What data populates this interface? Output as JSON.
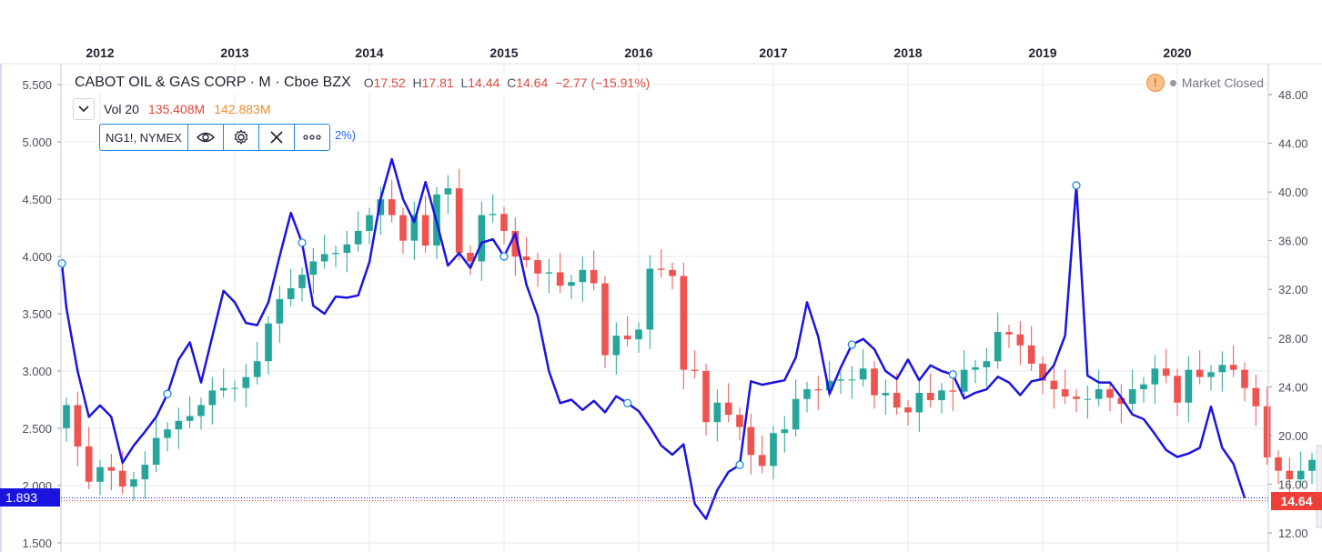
{
  "header": {
    "symbol_title": "CABOT OIL & GAS CORP · M · Cboe BZX",
    "ohlc": {
      "open_label": "O",
      "open": "17.52",
      "high_label": "H",
      "high": "17.81",
      "low_label": "L",
      "low": "14.44",
      "close_label": "C",
      "close": "14.64",
      "change": "−2.77 (−15.91%)"
    },
    "market_status": "Market Closed",
    "alert_glyph": "!"
  },
  "volume": {
    "label": "Vol 20",
    "value1": "135.408M",
    "value2": "142.883M"
  },
  "overlay_study": {
    "name": "NG1!, NYMEX",
    "tail_text": "2%)"
  },
  "price_badges": {
    "left": "1.893",
    "right": "14.64"
  },
  "colors": {
    "up": "#26a69a",
    "down": "#ef5350",
    "overlay_line": "#1b14e0",
    "grid": "#e6e8ee",
    "axis_text": "#4a4f5c",
    "left_badge": "#1b14e0",
    "right_badge": "#ef3e36"
  },
  "chart_data": {
    "type": "line",
    "x_axis": {
      "type": "time",
      "tick_labels": [
        "2012",
        "2013",
        "2014",
        "2015",
        "2016",
        "2017",
        "2018",
        "2019",
        "2020"
      ],
      "range": [
        "2011-09",
        "2020-06"
      ]
    },
    "left_axis": {
      "series": "NG1!, NYMEX",
      "tick_labels": [
        "5.500",
        "5.000",
        "4.500",
        "4.000",
        "3.500",
        "3.000",
        "2.500",
        "2.000",
        "1.500"
      ],
      "range": [
        1.45,
        5.6
      ]
    },
    "right_axis": {
      "series": "CABOT OIL & GAS CORP",
      "tick_labels": [
        "48.00",
        "44.00",
        "40.00",
        "36.00",
        "32.00",
        "28.00",
        "24.00",
        "20.00",
        "16.00",
        "12.00"
      ],
      "range": [
        11.5,
        48.5
      ]
    },
    "grid": true,
    "cog_monthly_candles": {
      "description": "Approximate monthly O/C candles for COG (right axis)",
      "start": "2011-10",
      "open": [
        20.6,
        22.5,
        19.1,
        16.2,
        17.4,
        17.1,
        15.8,
        16.4,
        17.6,
        19.8,
        20.5,
        21.2,
        21.6,
        22.5,
        23.7,
        23.9,
        23.9,
        24.8,
        26.1,
        29.2,
        31.2,
        32.1,
        33.2,
        34.3,
        34.9,
        35.0,
        35.7,
        36.8,
        38.1,
        39.4,
        38.1,
        36.0,
        38.1,
        35.6,
        39.8,
        40.3,
        35.0,
        34.3,
        38.1,
        38.2,
        36.8,
        34.7,
        34.4,
        33.3,
        33.4,
        32.3,
        32.6,
        33.6,
        32.5,
        26.6,
        28.2,
        27.9,
        28.7,
        33.7,
        33.6,
        33.1,
        25.4,
        25.3,
        21.1,
        22.7,
        21.7,
        20.7,
        18.4,
        17.5,
        20.2,
        20.5,
        23.0,
        23.8,
        23.7,
        24.5,
        24.6,
        24.6,
        25.5,
        23.3,
        23.5,
        22.3,
        21.9,
        23.5,
        22.9,
        23.7,
        23.6,
        25.4,
        25.6,
        26.1,
        28.5,
        28.3,
        27.4,
        25.9,
        24.5,
        23.8,
        23.2,
        23.0,
        23.0,
        23.8,
        23.1,
        22.6,
        23.8,
        24.2,
        25.5,
        24.9,
        22.7,
        25.4,
        24.8,
        25.2,
        25.8,
        25.4,
        23.9,
        22.4,
        18.2,
        17.1,
        16.4,
        17.1,
        18.0,
        16.9,
        17.5
      ],
      "close": [
        22.5,
        19.1,
        16.2,
        17.4,
        17.1,
        15.8,
        16.4,
        17.6,
        19.8,
        20.5,
        21.2,
        21.6,
        22.5,
        23.7,
        23.9,
        23.9,
        24.8,
        26.1,
        29.2,
        31.2,
        32.1,
        33.2,
        34.3,
        34.9,
        35.0,
        35.7,
        36.8,
        38.1,
        39.4,
        38.1,
        36.0,
        38.1,
        35.6,
        39.8,
        40.3,
        35.0,
        34.3,
        38.1,
        38.2,
        36.8,
        34.7,
        34.4,
        33.3,
        33.4,
        32.3,
        32.6,
        33.6,
        32.5,
        26.6,
        28.2,
        27.9,
        28.7,
        33.7,
        33.6,
        33.1,
        25.4,
        25.3,
        21.1,
        22.7,
        21.7,
        20.7,
        18.4,
        17.5,
        20.2,
        20.5,
        23.0,
        23.8,
        23.7,
        24.5,
        24.6,
        24.6,
        25.5,
        23.3,
        23.5,
        22.3,
        21.9,
        23.5,
        22.9,
        23.7,
        23.6,
        25.4,
        25.6,
        26.1,
        28.5,
        28.3,
        27.4,
        25.9,
        24.5,
        23.8,
        23.2,
        23.0,
        23.0,
        23.8,
        23.1,
        22.6,
        23.8,
        24.2,
        25.5,
        24.9,
        22.7,
        25.4,
        24.8,
        25.2,
        25.8,
        25.4,
        23.9,
        22.4,
        18.2,
        17.1,
        16.4,
        17.1,
        18.0,
        16.9,
        17.5,
        14.64
      ]
    },
    "ng_monthly_close": {
      "description": "Approximate monthly close of NG1! (left axis)",
      "start": "2011-09",
      "values": [
        3.94,
        3.55,
        3.0,
        2.6,
        2.7,
        2.6,
        2.2,
        2.35,
        2.47,
        2.6,
        2.8,
        3.1,
        3.25,
        2.9,
        3.3,
        3.7,
        3.6,
        3.42,
        3.4,
        3.6,
        4.0,
        4.38,
        4.12,
        3.57,
        3.5,
        3.65,
        3.64,
        3.66,
        3.95,
        4.5,
        4.85,
        4.5,
        4.3,
        4.65,
        4.3,
        3.92,
        4.03,
        3.9,
        4.12,
        4.15,
        4.0,
        4.2,
        3.75,
        3.48,
        3.0,
        2.72,
        2.75,
        2.66,
        2.74,
        2.64,
        2.78,
        2.72,
        2.65,
        2.51,
        2.35,
        2.27,
        2.36,
        1.84,
        1.71,
        1.96,
        2.12,
        2.18,
        2.91,
        2.88,
        2.9,
        2.92,
        3.12,
        3.6,
        3.3,
        2.8,
        3.03,
        3.23,
        3.28,
        3.19,
        3.0,
        2.93,
        3.1,
        2.92,
        3.05,
        3.0,
        2.97,
        2.76,
        2.81,
        2.84,
        2.95,
        2.9,
        2.79,
        2.91,
        2.93,
        3.05,
        3.31,
        4.62,
        2.96,
        2.9,
        2.9,
        2.77,
        2.62,
        2.58,
        2.45,
        2.31,
        2.25,
        2.28,
        2.33,
        2.69,
        2.33,
        2.19,
        1.893
      ]
    },
    "overlay_markers_dates": [
      "2011-09",
      "2012-07",
      "2013-07",
      "2015-01",
      "2015-12",
      "2016-10",
      "2017-08",
      "2018-05",
      "2019-04"
    ],
    "last_values": {
      "left": 1.893,
      "right": 14.64
    }
  }
}
